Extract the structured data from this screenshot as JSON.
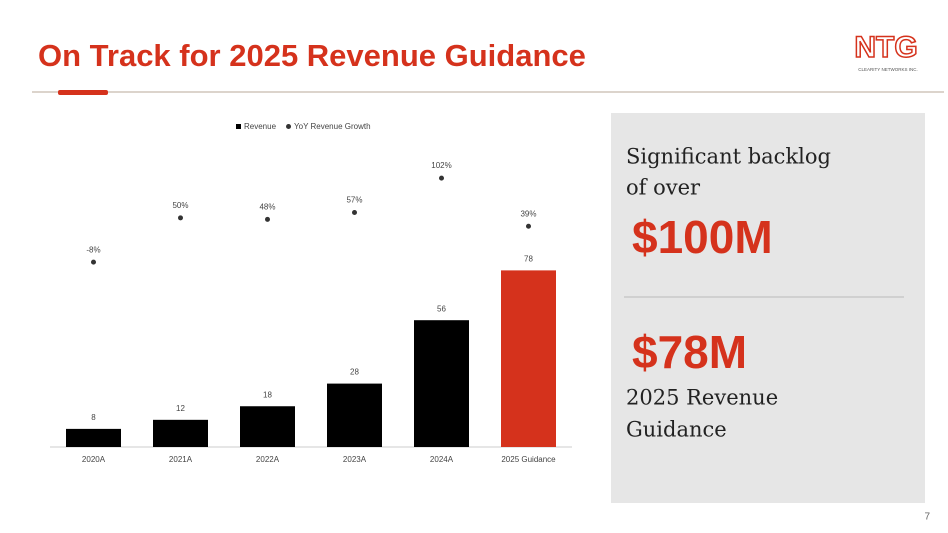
{
  "slide": {
    "title": "On Track for 2025 Revenue Guidance",
    "logo": {
      "text": "NTG",
      "subtext": "CLEARITY NETWORKS INC."
    },
    "page_number": "7",
    "panel": {
      "intro": [
        "Significant backlog",
        "of over"
      ],
      "backlog": "$100M",
      "guidance": "$78M",
      "guidance_text": [
        "2025 Revenue",
        "Guidance"
      ]
    }
  },
  "chart_data": {
    "type": "bar",
    "categories": [
      "2020A",
      "2021A",
      "2022A",
      "2023A",
      "2024A",
      "2025 Guidance"
    ],
    "ylim": [
      0,
      140
    ],
    "y2lim": [
      -250,
      165
    ],
    "legend": "top",
    "series": [
      {
        "name": "Revenue",
        "type": "bar",
        "color": "#000000",
        "colors": [
          "#000000",
          "#000000",
          "#000000",
          "#000000",
          "#000000",
          "#d5321c"
        ],
        "values": [
          8,
          12,
          18,
          28,
          56,
          78
        ]
      },
      {
        "name": "YoY Revenue Growth",
        "type": "scatter",
        "axis": "y2",
        "color": "#333333",
        "values": [
          -8,
          50,
          48,
          57,
          102,
          39
        ],
        "value_labels": [
          "-8%",
          "50%",
          "48%",
          "57%",
          "102%",
          "39%"
        ]
      }
    ]
  }
}
